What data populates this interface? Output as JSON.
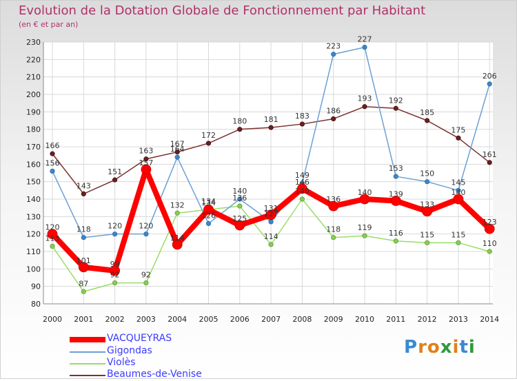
{
  "header": {
    "title": "Evolution de la Dotation Globale de Fonctionnement par Habitant",
    "subtitle": "(en € et par an)"
  },
  "logo": {
    "letters": [
      "P",
      "r",
      "o",
      "x",
      "i",
      "t",
      "i"
    ],
    "colors": [
      "#3a8ad0",
      "#e2801a",
      "#e2801a",
      "#2f9a3a",
      "#e2801a",
      "#3a8ad0",
      "#2f9a3a"
    ]
  },
  "chart_data": {
    "type": "line",
    "x": [
      "2000",
      "2001",
      "2002",
      "2003",
      "2004",
      "2005",
      "2006",
      "2007",
      "2008",
      "2009",
      "2010",
      "2011",
      "2012",
      "2013",
      "2014"
    ],
    "ylim": [
      80,
      230
    ],
    "yticks": [
      80,
      90,
      100,
      110,
      120,
      130,
      140,
      150,
      160,
      170,
      180,
      190,
      200,
      210,
      220,
      230
    ],
    "grid": true,
    "legend_position": "bottom-left",
    "series": [
      {
        "name": "VACQUEYRAS",
        "color": "#ff0000",
        "values": [
          120,
          101,
          99,
          157,
          114,
          134,
          125,
          131,
          146,
          136,
          140,
          139,
          133,
          140,
          123
        ]
      },
      {
        "name": "Gigondas",
        "color": "#6aa0d4",
        "values": [
          156,
          118,
          120,
          120,
          164,
          126,
          140,
          127,
          149,
          223,
          227,
          153,
          150,
          145,
          206
        ]
      },
      {
        "name": "Violès",
        "color": "#99dd66",
        "values": [
          113,
          87,
          92,
          92,
          132,
          134,
          136,
          114,
          140,
          118,
          119,
          116,
          115,
          115,
          110
        ]
      },
      {
        "name": "Beaumes-de-Venise",
        "color": "#7a3030",
        "values": [
          166,
          143,
          151,
          163,
          167,
          172,
          180,
          181,
          183,
          186,
          193,
          192,
          185,
          175,
          161
        ]
      }
    ],
    "labels": [
      [
        "120",
        "101",
        "99",
        "157",
        "114",
        "134",
        "125",
        "131",
        "146",
        "136",
        "140",
        "139",
        "133",
        "140",
        "123"
      ],
      [
        "156",
        "118",
        "120",
        "120",
        "164",
        "126",
        "140",
        "127",
        "149",
        "223",
        "227",
        "153",
        "150",
        "145",
        "206"
      ],
      [
        "113",
        "87",
        "92",
        "92",
        "132",
        "134",
        "136",
        "114",
        "140",
        "118",
        "119",
        "116",
        "115",
        "115",
        "110"
      ],
      [
        "166",
        "143",
        "151",
        "163",
        "167",
        "172",
        "180",
        "181",
        "183",
        "186",
        "193",
        "192",
        "185",
        "175",
        "161"
      ]
    ]
  }
}
